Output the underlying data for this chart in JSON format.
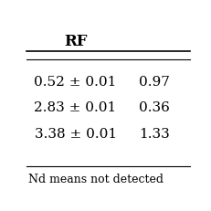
{
  "col1_header": "RF",
  "col2_header": "",
  "rows": [
    [
      "0.52 ± 0.01",
      "0.97"
    ],
    [
      "2.83 ± 0.01",
      "0.36"
    ],
    [
      "3.38 ± 0.01",
      "1.33"
    ]
  ],
  "footnote": "Nd means not detected",
  "bg_color": "#ffffff",
  "line_color": "black",
  "font_size": 11,
  "header_font_size": 12
}
